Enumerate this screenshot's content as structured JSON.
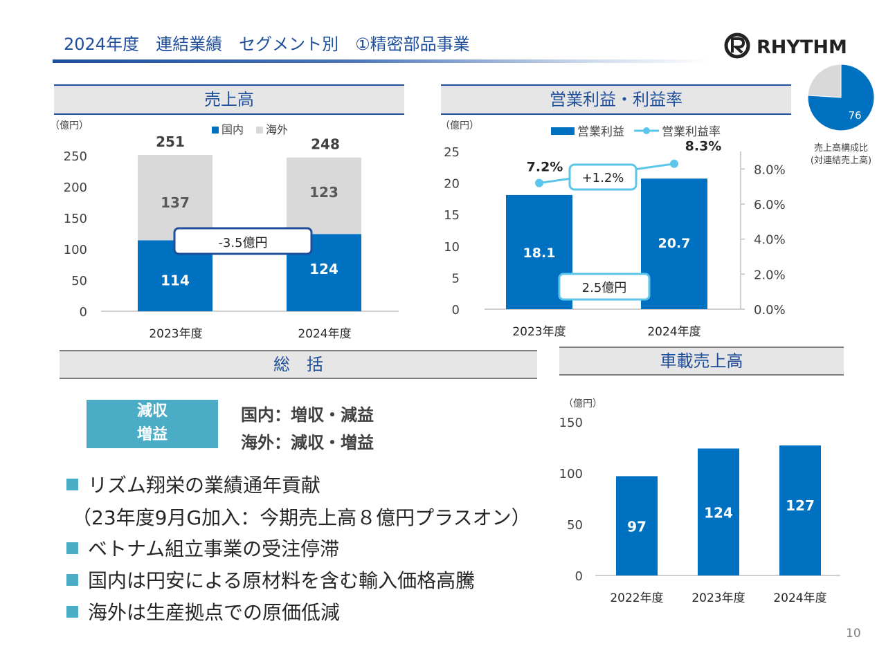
{
  "header": {
    "title": "2024年度　連結業績　セグメント別　①精密部品事業",
    "logo_text": "RHYTHM"
  },
  "colors": {
    "primary": "#0070c0",
    "domestic": "#0070c0",
    "overseas": "#d9d9d9",
    "line": "#5bc5ea",
    "accent_box": "#4bacc6",
    "title": "#1f4e9b"
  },
  "sales_panel": {
    "heading": "売上高",
    "unit": "（億円）",
    "legend": [
      "国内",
      "海外"
    ],
    "diff_label": "-3.5億円",
    "chart_data": {
      "type": "bar",
      "stacked": true,
      "categories": [
        "2023年度",
        "2024年度"
      ],
      "series": [
        {
          "name": "国内",
          "values": [
            114,
            124
          ]
        },
        {
          "name": "海外",
          "values": [
            137,
            123
          ]
        }
      ],
      "totals": [
        251,
        248
      ],
      "ylim": [
        0,
        250
      ],
      "yticks": [
        "0",
        "50",
        "100",
        "150",
        "200",
        "250"
      ]
    }
  },
  "profit_panel": {
    "heading": "営業利益・利益率",
    "unit": "（億円）",
    "legend": [
      "営業利益",
      "営業利益率"
    ],
    "diff_label": "2.5億円",
    "rate_diff_label": "+1.2%",
    "chart_data": {
      "type": "bar",
      "categories": [
        "2023年度",
        "2024年度"
      ],
      "series": [
        {
          "name": "営業利益",
          "values": [
            18.1,
            20.7
          ]
        },
        {
          "name": "営業利益率",
          "values": [
            7.2,
            8.3
          ],
          "labels": [
            "7.2%",
            "8.3%"
          ],
          "type": "line",
          "axis": "right"
        }
      ],
      "ylim": [
        0,
        25
      ],
      "yticks": [
        "0",
        "5",
        "10",
        "15",
        "20",
        "25"
      ],
      "y2lim": [
        0,
        9
      ],
      "y2ticks": [
        "0.0%",
        "2.0%",
        "4.0%",
        "6.0%",
        "8.0%"
      ]
    }
  },
  "composition": {
    "value": 76,
    "value_label": "76",
    "caption_line1": "売上高構成比",
    "caption_line2": "(対連結売上高)"
  },
  "summary": {
    "heading": "総　括",
    "box_line1": "減収",
    "box_line2": "増益",
    "domestic": "国内：増収・減益",
    "overseas": "海外：減収・増益",
    "bullets": [
      "リズム翔栄の業績通年貢献",
      "（23年度9月G加入：今期売上高８億円プラスオン）",
      "ベトナム組立事業の受注停滞",
      "国内は円安による原材料を含む輸入価格高騰",
      "海外は生産拠点での原価低減"
    ]
  },
  "auto_panel": {
    "heading": "車載売上高",
    "unit": "（億円）",
    "chart_data": {
      "type": "bar",
      "categories": [
        "2022年度",
        "2023年度",
        "2024年度"
      ],
      "values": [
        97,
        124,
        127
      ],
      "ylim": [
        0,
        150
      ],
      "yticks": [
        "0",
        "50",
        "100",
        "150"
      ]
    }
  },
  "page_number": "10"
}
